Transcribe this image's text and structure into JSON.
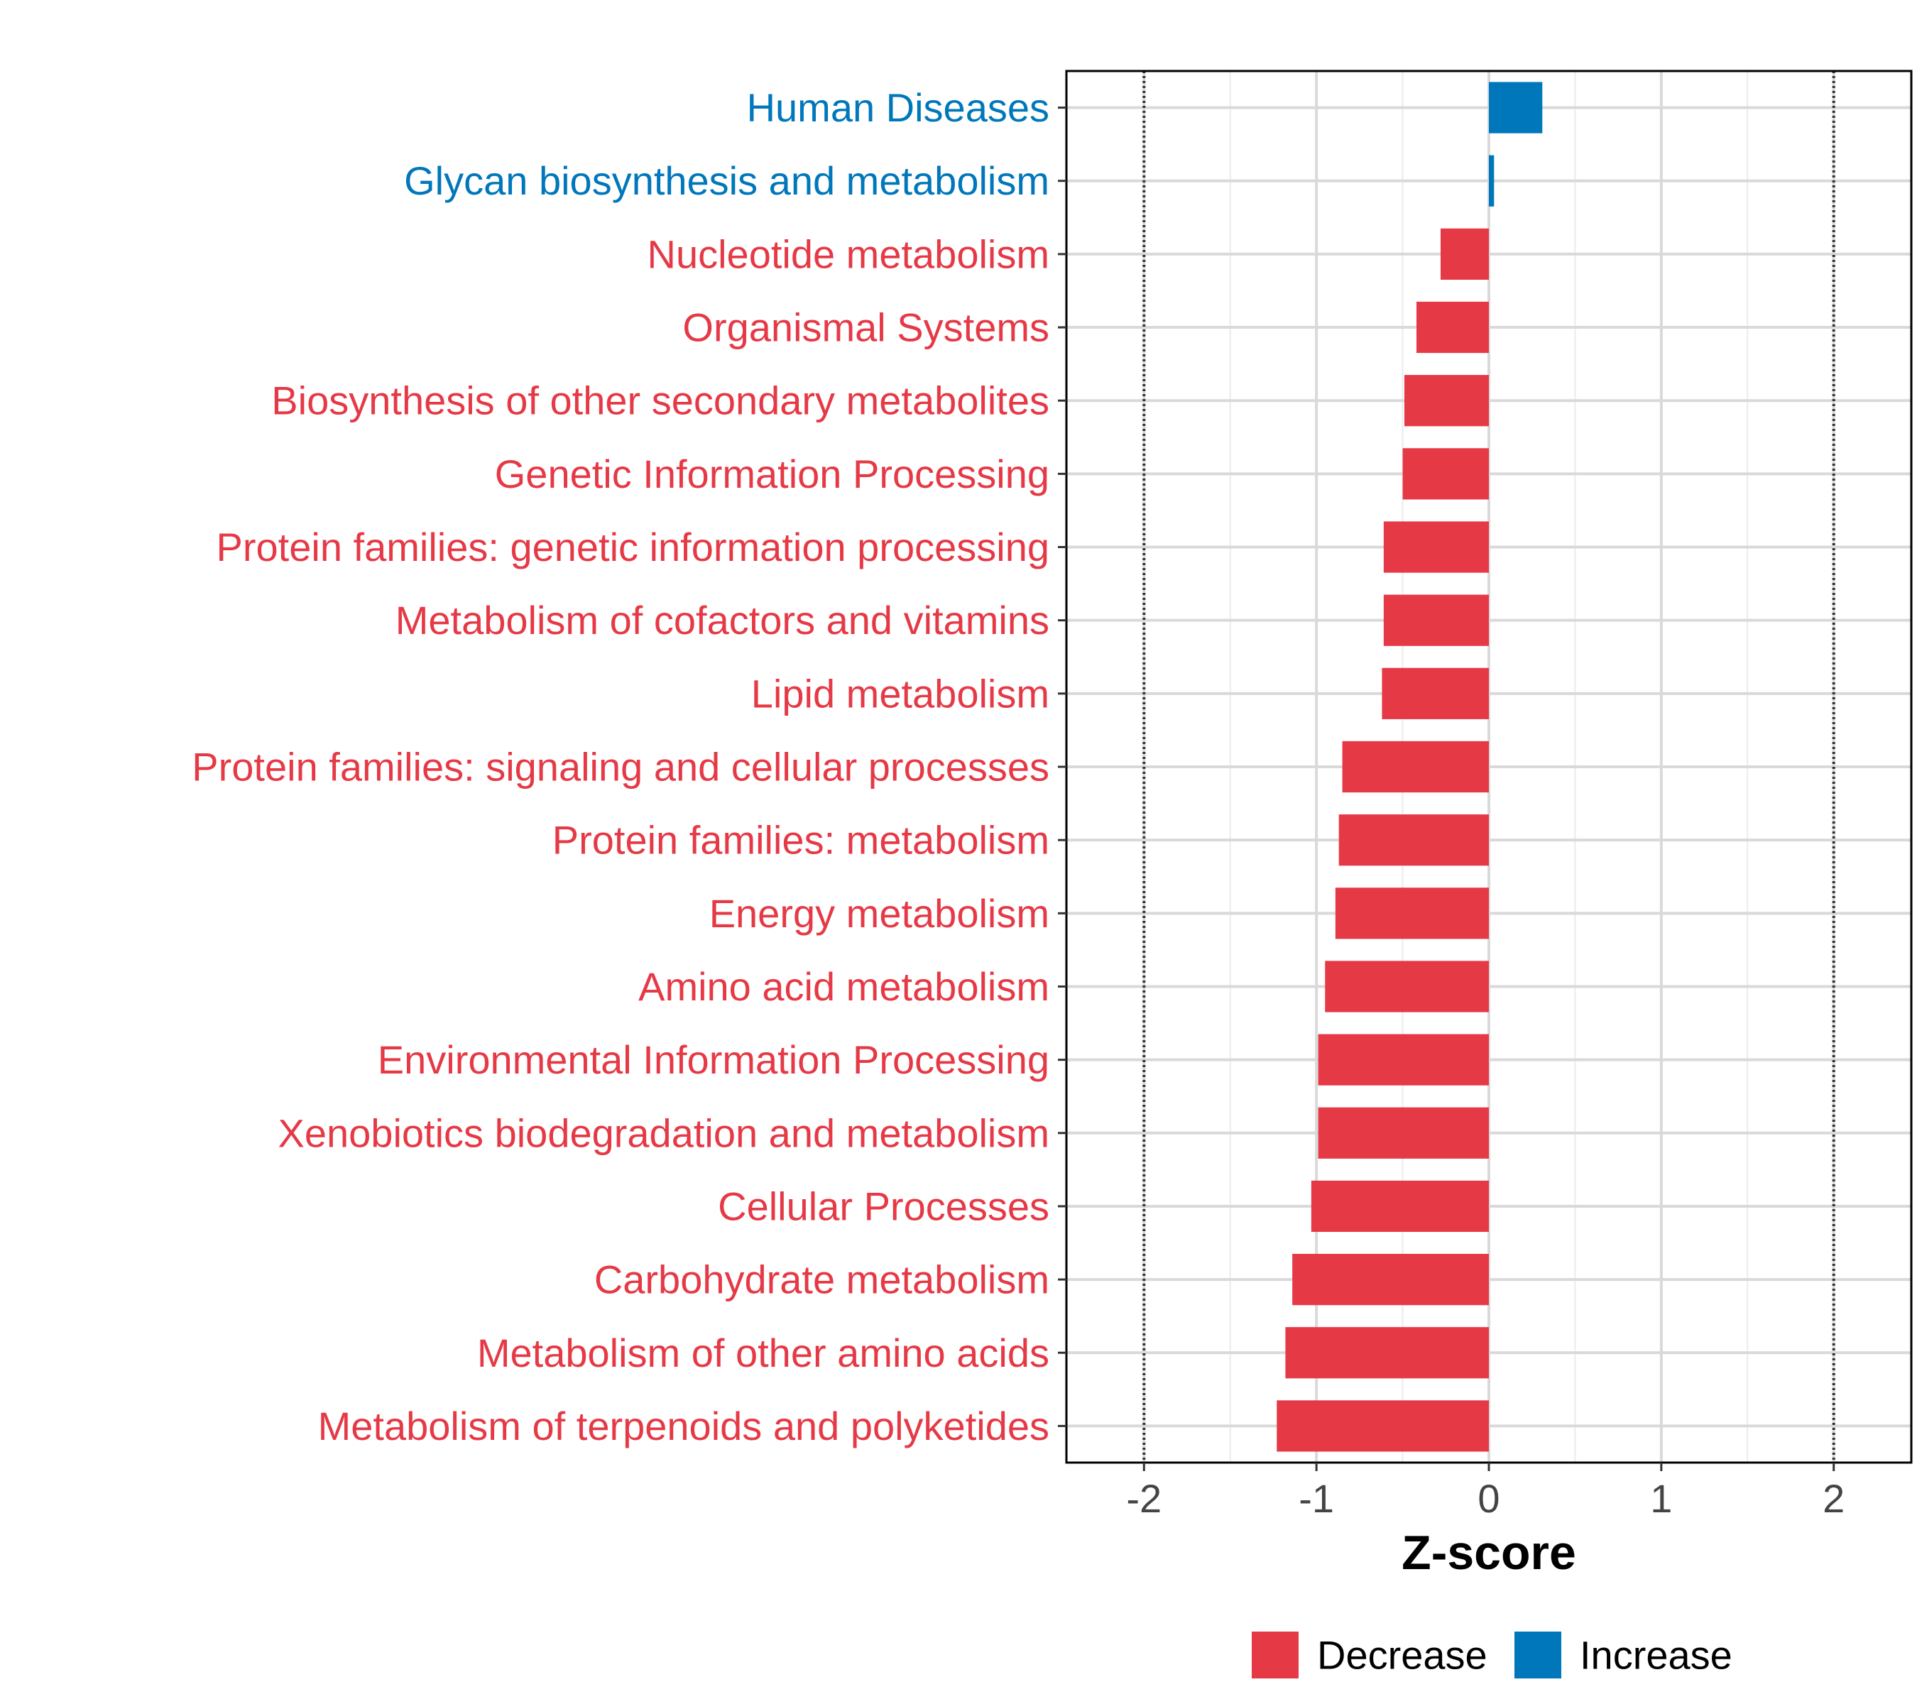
{
  "chart_data": {
    "type": "bar",
    "orientation": "horizontal",
    "categories": [
      "Human Diseases",
      "Glycan biosynthesis and metabolism",
      "Nucleotide metabolism",
      "Organismal Systems",
      "Biosynthesis of other secondary metabolites",
      "Genetic Information Processing",
      "Protein families: genetic information processing",
      "Metabolism of cofactors and vitamins",
      "Lipid metabolism",
      "Protein families: signaling and cellular processes",
      "Protein families: metabolism",
      "Energy metabolism",
      "Amino acid metabolism",
      "Environmental Information Processing",
      "Xenobiotics biodegradation and metabolism",
      "Cellular Processes",
      "Carbohydrate metabolism",
      "Metabolism of other amino acids",
      "Metabolism of terpenoids and polyketides"
    ],
    "values": [
      0.31,
      0.03,
      -0.28,
      -0.42,
      -0.49,
      -0.5,
      -0.61,
      -0.61,
      -0.62,
      -0.85,
      -0.87,
      -0.89,
      -0.95,
      -0.99,
      -0.99,
      -1.03,
      -1.14,
      -1.18,
      -1.23
    ],
    "groups": [
      "Increase",
      "Increase",
      "Decrease",
      "Decrease",
      "Decrease",
      "Decrease",
      "Decrease",
      "Decrease",
      "Decrease",
      "Decrease",
      "Decrease",
      "Decrease",
      "Decrease",
      "Decrease",
      "Decrease",
      "Decrease",
      "Decrease",
      "Decrease",
      "Decrease"
    ],
    "xlabel": "Z-score",
    "ylabel": "",
    "xlim": [
      -2.45,
      2.45
    ],
    "xticks": [
      -2,
      -1,
      0,
      1,
      2
    ],
    "xtick_labels": [
      "-2",
      "-1",
      "0",
      "1",
      "2"
    ],
    "reference_lines": [
      -2,
      2
    ],
    "grid": true,
    "legend": {
      "placement": "bottom",
      "entries": [
        {
          "label": "Decrease",
          "color": "#E63946"
        },
        {
          "label": "Increase",
          "color": "#0077BB"
        }
      ]
    }
  }
}
